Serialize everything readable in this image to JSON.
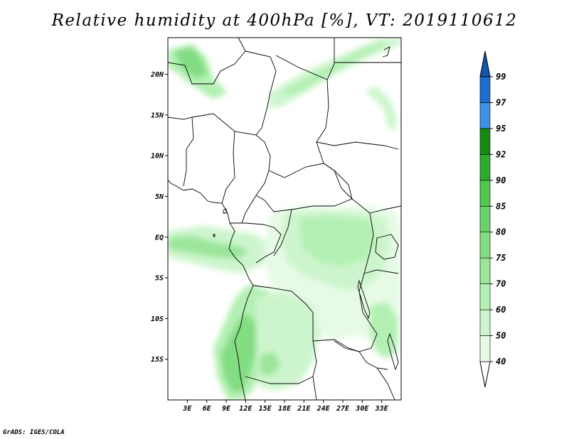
{
  "title": "Relative humidity at 400hPa [%], VT: 2019110612",
  "credit": "GrADS: IGES/COLA",
  "map": {
    "lon_range": [
      0,
      36
    ],
    "lat_range": [
      -20,
      24.5
    ],
    "lat_ticks": [
      {
        "value": 20,
        "label": "20N"
      },
      {
        "value": 15,
        "label": "15N"
      },
      {
        "value": 10,
        "label": "10N"
      },
      {
        "value": 5,
        "label": "5N"
      },
      {
        "value": 0,
        "label": "EQ"
      },
      {
        "value": -5,
        "label": "5S"
      },
      {
        "value": -10,
        "label": "10S"
      },
      {
        "value": -15,
        "label": "15S"
      }
    ],
    "lon_ticks": [
      {
        "value": 3,
        "label": "3E"
      },
      {
        "value": 6,
        "label": "6E"
      },
      {
        "value": 9,
        "label": "9E"
      },
      {
        "value": 12,
        "label": "12E"
      },
      {
        "value": 15,
        "label": "15E"
      },
      {
        "value": 18,
        "label": "18E"
      },
      {
        "value": 21,
        "label": "21E"
      },
      {
        "value": 24,
        "label": "24E"
      },
      {
        "value": 27,
        "label": "27E"
      },
      {
        "value": 30,
        "label": "30E"
      },
      {
        "value": 33,
        "label": "33E"
      }
    ]
  },
  "colorbar": {
    "levels": [
      "40",
      "50",
      "60",
      "70",
      "75",
      "80",
      "85",
      "90",
      "92",
      "95",
      "97",
      "99"
    ],
    "colors": [
      "#e6fae6",
      "#cdf5cd",
      "#b4f0b4",
      "#9be69b",
      "#82dc82",
      "#69d269",
      "#50c850",
      "#2daa2d",
      "#148c14",
      "#3c91e6",
      "#1e6ed2",
      "#1455b4"
    ],
    "under_color": "#ffffff"
  }
}
